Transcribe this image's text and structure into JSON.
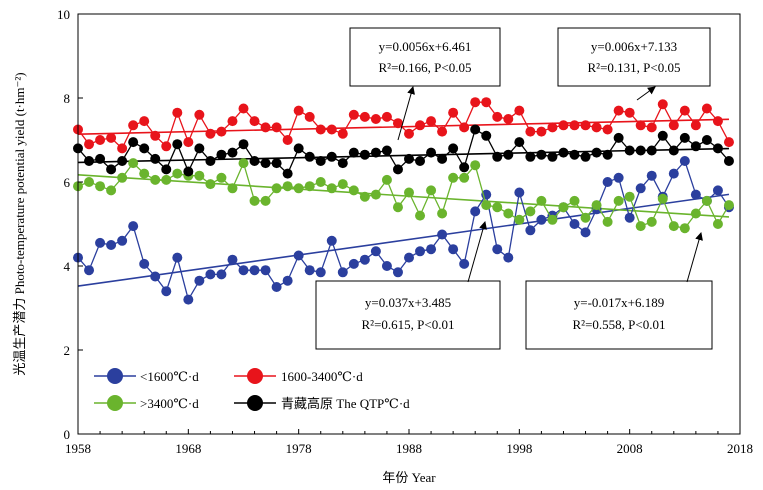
{
  "chart_data": {
    "type": "scatter",
    "xlabel": "年份 Year",
    "ylabel": "光温生产潜力 Photo-temperature potential yield (t·hm⁻²)",
    "xlim": [
      1958,
      2018
    ],
    "ylim": [
      0,
      10
    ],
    "x_ticks": [
      "1958",
      "1968",
      "1978",
      "1988",
      "1998",
      "2008",
      "2018"
    ],
    "y_ticks": [
      "0",
      "2",
      "4",
      "6",
      "8",
      "10"
    ],
    "x": [
      1958,
      1959,
      1960,
      1961,
      1962,
      1963,
      1964,
      1965,
      1966,
      1967,
      1968,
      1969,
      1970,
      1971,
      1972,
      1973,
      1974,
      1975,
      1976,
      1977,
      1978,
      1979,
      1980,
      1981,
      1982,
      1983,
      1984,
      1985,
      1986,
      1987,
      1988,
      1989,
      1990,
      1991,
      1992,
      1993,
      1994,
      1995,
      1996,
      1997,
      1998,
      1999,
      2000,
      2001,
      2002,
      2003,
      2004,
      2005,
      2006,
      2007,
      2008,
      2009,
      2010,
      2011,
      2012,
      2013,
      2014,
      2015,
      2016,
      2017
    ],
    "series": [
      {
        "name": "<1600℃·d",
        "color": "#2b3f9e",
        "values": [
          4.2,
          3.9,
          4.55,
          4.5,
          4.6,
          4.95,
          4.05,
          3.75,
          3.4,
          4.2,
          3.2,
          3.65,
          3.8,
          3.8,
          4.15,
          3.9,
          3.9,
          3.9,
          3.5,
          3.65,
          4.25,
          3.9,
          3.85,
          4.6,
          3.85,
          4.05,
          4.15,
          4.35,
          4.0,
          3.85,
          4.2,
          4.35,
          4.4,
          4.75,
          4.4,
          4.05,
          5.3,
          5.7,
          4.4,
          4.2,
          5.75,
          4.85,
          5.1,
          5.2,
          5.4,
          5.0,
          4.8,
          5.35,
          6.0,
          6.1,
          5.15,
          5.85,
          6.15,
          5.65,
          6.2,
          6.5,
          5.7,
          5.55,
          5.8,
          5.4
        ],
        "trend": "y=0.037x+3.485",
        "stats": "R²=0.615, P<0.01"
      },
      {
        "name": "1600-3400℃·d",
        "color": "#e8141b",
        "values": [
          7.25,
          6.9,
          7.0,
          7.05,
          6.8,
          7.35,
          7.45,
          7.1,
          6.85,
          7.65,
          6.95,
          7.6,
          7.15,
          7.2,
          7.45,
          7.75,
          7.45,
          7.3,
          7.3,
          7.0,
          7.7,
          7.55,
          7.25,
          7.25,
          7.15,
          7.6,
          7.55,
          7.5,
          7.55,
          7.4,
          7.15,
          7.35,
          7.45,
          7.2,
          7.65,
          7.3,
          7.9,
          7.9,
          7.55,
          7.5,
          7.7,
          7.2,
          7.2,
          7.3,
          7.35,
          7.35,
          7.35,
          7.3,
          7.25,
          7.7,
          7.65,
          7.35,
          7.3,
          7.85,
          7.35,
          7.7,
          7.35,
          7.75,
          7.45,
          6.95
        ],
        "trend": "y=0.006x+7.133",
        "stats": "R²=0.131, P<0.05"
      },
      {
        "name": ">3400℃·d",
        "color": "#6ab42d",
        "values": [
          5.9,
          6.0,
          5.9,
          5.8,
          6.1,
          6.45,
          6.2,
          6.05,
          6.05,
          6.2,
          6.15,
          6.15,
          5.95,
          6.1,
          5.85,
          6.45,
          5.55,
          5.55,
          5.85,
          5.9,
          5.85,
          5.9,
          6.0,
          5.85,
          5.95,
          5.8,
          5.65,
          5.7,
          6.05,
          5.4,
          5.75,
          5.2,
          5.8,
          5.25,
          6.1,
          6.1,
          6.4,
          5.45,
          5.4,
          5.25,
          5.1,
          5.3,
          5.55,
          5.1,
          5.4,
          5.55,
          5.15,
          5.45,
          5.05,
          5.55,
          5.65,
          4.95,
          5.05,
          5.6,
          4.95,
          4.9,
          5.25,
          5.55,
          5.0,
          5.45
        ],
        "trend": "y=-0.017x+6.189",
        "stats": "R²=0.558, P<0.01"
      },
      {
        "name": "青藏高原 The QTP℃·d",
        "color": "#000000",
        "values": [
          6.8,
          6.5,
          6.55,
          6.3,
          6.5,
          6.95,
          6.8,
          6.55,
          6.3,
          6.9,
          6.25,
          6.8,
          6.5,
          6.65,
          6.7,
          6.9,
          6.5,
          6.45,
          6.45,
          6.2,
          6.8,
          6.6,
          6.5,
          6.6,
          6.45,
          6.7,
          6.65,
          6.7,
          6.75,
          6.3,
          6.55,
          6.5,
          6.7,
          6.55,
          6.8,
          6.35,
          7.25,
          7.1,
          6.6,
          6.65,
          6.95,
          6.6,
          6.65,
          6.6,
          6.7,
          6.65,
          6.6,
          6.7,
          6.65,
          7.05,
          6.75,
          6.75,
          6.75,
          7.1,
          6.75,
          7.05,
          6.85,
          7.0,
          6.8,
          6.5
        ],
        "trend": "y=0.0056x+6.461",
        "stats": "R²=0.166, P<0.05"
      }
    ],
    "legend": "bottom-left, two columns"
  }
}
